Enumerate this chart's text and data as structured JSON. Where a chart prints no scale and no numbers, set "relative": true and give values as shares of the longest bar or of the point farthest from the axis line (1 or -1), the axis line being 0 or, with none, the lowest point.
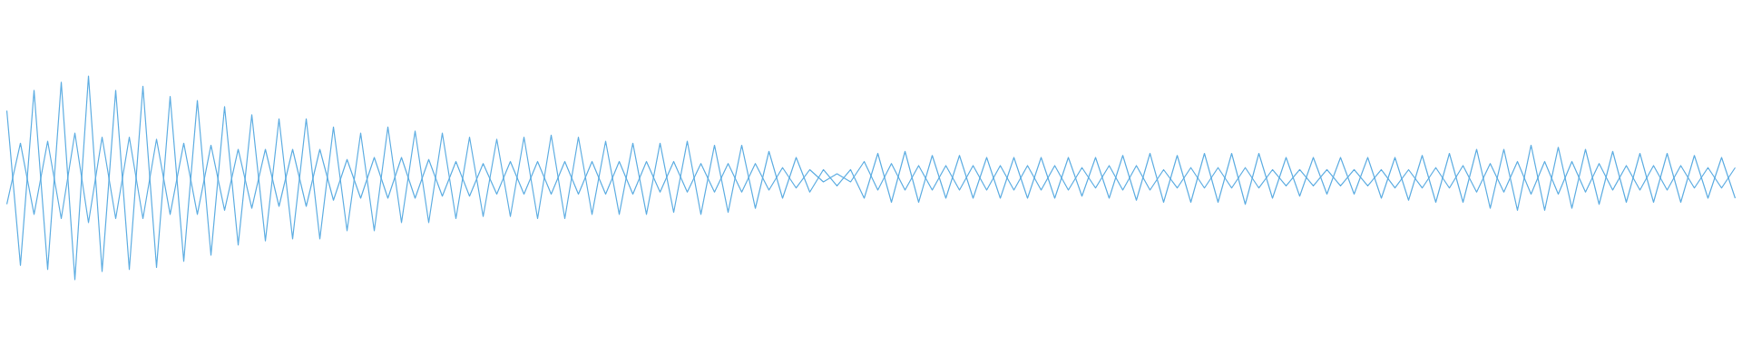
{
  "chart_data": {
    "type": "line",
    "relative": true,
    "categories": [
      null,
      null,
      null,
      null,
      null,
      null,
      null,
      null,
      null,
      null,
      null,
      null,
      null,
      null,
      null,
      null,
      null,
      null,
      null,
      null,
      null,
      null,
      null,
      null,
      null,
      null,
      null,
      null,
      null,
      null,
      null,
      null,
      null,
      null,
      null,
      null,
      null,
      null,
      null,
      null,
      null,
      null,
      null,
      null,
      null,
      null,
      null,
      null,
      null,
      null,
      null,
      null,
      null,
      null,
      null,
      null,
      null,
      null,
      null,
      null,
      null,
      null,
      null,
      null,
      null,
      null,
      null,
      null,
      null,
      null,
      null,
      null,
      null,
      null,
      null,
      null,
      null,
      null,
      null,
      null,
      null,
      null,
      null,
      null,
      null,
      null,
      null,
      null,
      null,
      null,
      null,
      null,
      null,
      null,
      null,
      null,
      null,
      null,
      null,
      null,
      null,
      null,
      null,
      null,
      null,
      null,
      null,
      null,
      null,
      null,
      null,
      null,
      null,
      null,
      null,
      null,
      null,
      null,
      null,
      null,
      null,
      null,
      null,
      null,
      null,
      null,
      null,
      null
    ],
    "series": [
      {
        "color": "#5dade2",
        "values": [
          0.83,
          0.07,
          0.93,
          0.05,
          0.97,
          0.0,
          1.0,
          0.04,
          0.93,
          0.05,
          0.95,
          0.06,
          0.9,
          0.09,
          0.88,
          0.12,
          0.85,
          0.17,
          0.81,
          0.19,
          0.79,
          0.2,
          0.79,
          0.2,
          0.75,
          0.24,
          0.72,
          0.24,
          0.75,
          0.28,
          0.73,
          0.28,
          0.72,
          0.3,
          0.7,
          0.31,
          0.69,
          0.31,
          0.7,
          0.3,
          0.71,
          0.3,
          0.7,
          0.32,
          0.68,
          0.32,
          0.67,
          0.32,
          0.67,
          0.33,
          0.68,
          0.32,
          0.66,
          0.33,
          0.66,
          0.35,
          0.63,
          0.4,
          0.6,
          0.43,
          0.54,
          0.46,
          0.54,
          0.4,
          0.62,
          0.38,
          0.63,
          0.38,
          0.61,
          0.4,
          0.61,
          0.4,
          0.6,
          0.4,
          0.6,
          0.4,
          0.6,
          0.4,
          0.6,
          0.41,
          0.6,
          0.4,
          0.61,
          0.39,
          0.62,
          0.38,
          0.61,
          0.38,
          0.62,
          0.38,
          0.62,
          0.37,
          0.62,
          0.4,
          0.6,
          0.41,
          0.6,
          0.42,
          0.6,
          0.42,
          0.6,
          0.4,
          0.6,
          0.39,
          0.61,
          0.38,
          0.62,
          0.38,
          0.64,
          0.35,
          0.64,
          0.34,
          0.66,
          0.34,
          0.65,
          0.35,
          0.64,
          0.37,
          0.63,
          0.38,
          0.62,
          0.38,
          0.62,
          0.38,
          0.61,
          0.4,
          0.6,
          0.4
        ]
      },
      {
        "color": "#5dade2",
        "values": [
          0.37,
          0.67,
          0.32,
          0.68,
          0.3,
          0.72,
          0.28,
          0.7,
          0.3,
          0.7,
          0.3,
          0.69,
          0.32,
          0.67,
          0.32,
          0.66,
          0.34,
          0.64,
          0.35,
          0.64,
          0.36,
          0.64,
          0.36,
          0.64,
          0.39,
          0.59,
          0.4,
          0.6,
          0.4,
          0.6,
          0.4,
          0.59,
          0.41,
          0.58,
          0.41,
          0.57,
          0.42,
          0.58,
          0.42,
          0.58,
          0.42,
          0.58,
          0.42,
          0.58,
          0.42,
          0.58,
          0.42,
          0.58,
          0.43,
          0.58,
          0.43,
          0.57,
          0.43,
          0.57,
          0.43,
          0.57,
          0.44,
          0.55,
          0.45,
          0.54,
          0.48,
          0.52,
          0.48,
          0.58,
          0.44,
          0.57,
          0.44,
          0.56,
          0.44,
          0.56,
          0.44,
          0.56,
          0.44,
          0.56,
          0.44,
          0.56,
          0.44,
          0.56,
          0.44,
          0.55,
          0.45,
          0.56,
          0.44,
          0.56,
          0.44,
          0.54,
          0.45,
          0.55,
          0.45,
          0.55,
          0.45,
          0.55,
          0.45,
          0.54,
          0.46,
          0.54,
          0.46,
          0.54,
          0.46,
          0.54,
          0.46,
          0.54,
          0.45,
          0.54,
          0.45,
          0.55,
          0.45,
          0.56,
          0.43,
          0.57,
          0.43,
          0.58,
          0.42,
          0.58,
          0.42,
          0.58,
          0.43,
          0.57,
          0.44,
          0.56,
          0.44,
          0.56,
          0.44,
          0.56,
          0.45,
          0.55,
          0.45,
          0.55
        ]
      }
    ]
  }
}
